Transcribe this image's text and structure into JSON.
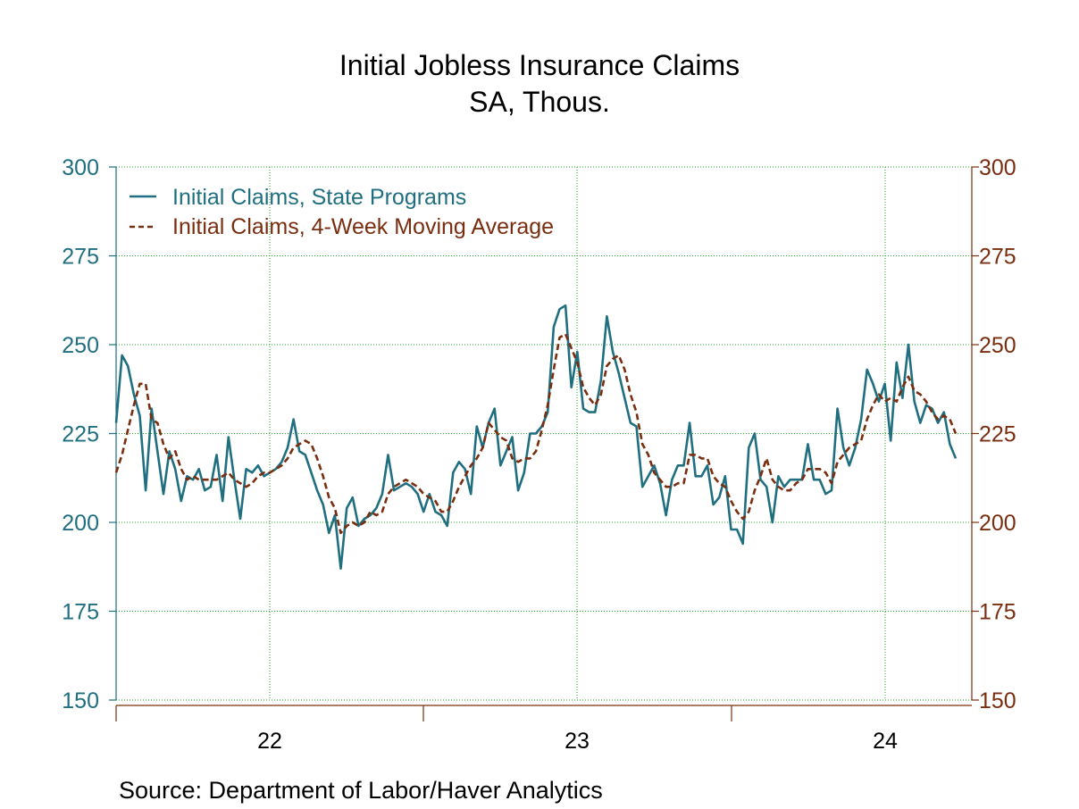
{
  "chart_data": {
    "type": "line",
    "title": "Initial Jobless Insurance Claims",
    "subtitle": "SA, Thous.",
    "ylim": [
      150,
      300
    ],
    "yticks": [
      "300",
      "275",
      "250",
      "225",
      "200",
      "175",
      "150"
    ],
    "xtick_labels": [
      "22",
      "23",
      "24"
    ],
    "x_range": [
      "2021-10",
      "2024-04"
    ],
    "grid": true,
    "legend_position": "top-left",
    "colors": {
      "claims": "#1f6f80",
      "average": "#7a2e10",
      "grid": "#22aa22",
      "axis_left": "#1f6f80",
      "axis_right": "#7a2e10"
    },
    "series": [
      {
        "name": "Initial Claims, State Programs",
        "style": "solid",
        "values": [
          228,
          247,
          244,
          236,
          230,
          209,
          232,
          220,
          208,
          220,
          215,
          206,
          213,
          212,
          215,
          209,
          210,
          219,
          206,
          224,
          212,
          201,
          215,
          214,
          216,
          213,
          214,
          215,
          217,
          221,
          229,
          220,
          219,
          214,
          209,
          205,
          197,
          202,
          187,
          204,
          207,
          199,
          201,
          202,
          204,
          208,
          219,
          209,
          210,
          211,
          210,
          208,
          203,
          208,
          203,
          202,
          199,
          214,
          217,
          215,
          208,
          227,
          221,
          228,
          232,
          216,
          220,
          224,
          209,
          214,
          225,
          225,
          227,
          231,
          255,
          260,
          261,
          238,
          248,
          232,
          231,
          231,
          240,
          258,
          248,
          242,
          235,
          228,
          227,
          210,
          213,
          216,
          211,
          202,
          212,
          216,
          216,
          228,
          213,
          213,
          216,
          205,
          207,
          213,
          198,
          198,
          194,
          221,
          225,
          212,
          210,
          200,
          213,
          210,
          212,
          212,
          212,
          222,
          212,
          212,
          208,
          209,
          232,
          221,
          216,
          221,
          229,
          243,
          239,
          234,
          239,
          223,
          245,
          235,
          250,
          234,
          228,
          233,
          232,
          228,
          231,
          222,
          218
        ]
      },
      {
        "name": "Initial Claims, 4-Week Moving Average",
        "style": "dashed",
        "values": [
          214,
          219,
          226,
          233,
          239,
          239,
          229,
          228,
          222,
          218,
          220,
          215,
          212,
          213,
          212,
          212,
          212,
          212,
          213,
          214,
          212,
          211,
          210,
          211,
          213,
          214,
          214,
          215,
          216,
          218,
          221,
          222,
          223,
          222,
          218,
          213,
          207,
          204,
          197,
          199,
          200,
          199,
          200,
          203,
          202,
          203,
          208,
          210,
          211,
          212,
          211,
          210,
          208,
          207,
          206,
          203,
          203,
          206,
          210,
          213,
          216,
          218,
          221,
          228,
          226,
          224,
          223,
          218,
          217,
          218,
          218,
          220,
          226,
          233,
          243,
          252,
          253,
          249,
          245,
          238,
          235,
          233,
          236,
          244,
          246,
          247,
          243,
          236,
          231,
          222,
          219,
          214,
          212,
          210,
          210,
          211,
          211,
          219,
          219,
          218,
          218,
          213,
          211,
          210,
          206,
          203,
          201,
          203,
          209,
          213,
          218,
          212,
          210,
          209,
          209,
          211,
          212,
          215,
          215,
          215,
          214,
          211,
          217,
          219,
          221,
          222,
          223,
          229,
          233,
          236,
          234,
          235,
          234,
          238,
          241,
          237,
          236,
          234,
          231,
          229,
          230,
          229,
          225
        ]
      }
    ]
  },
  "source": "Source:  Department of Labor/Haver Analytics"
}
